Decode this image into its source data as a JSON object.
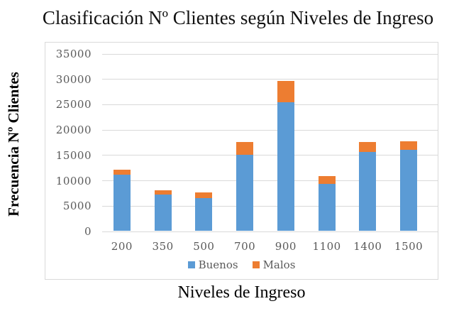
{
  "title": "Clasificación Nº Clientes según Niveles de Ingreso",
  "chart_data": {
    "type": "bar",
    "stacked": true,
    "title": "Clasificación Nº Clientes según Niveles de Ingreso",
    "xlabel": "Niveles de Ingreso",
    "ylabel": "Frecuencia Nº Clientes",
    "categories": [
      "200",
      "350",
      "500",
      "700",
      "900",
      "1100",
      "1400",
      "1500"
    ],
    "series": [
      {
        "name": "Buenos",
        "color": "#5B9BD5",
        "values": [
          11000,
          7200,
          6400,
          15000,
          25400,
          9200,
          15500,
          16000
        ]
      },
      {
        "name": "Malos",
        "color": "#ED7D31",
        "values": [
          1100,
          800,
          1100,
          2500,
          4100,
          1600,
          2000,
          1700
        ]
      }
    ],
    "ylim": [
      0,
      35000
    ],
    "ytick_step": 5000,
    "yticks": [
      "0",
      "5000",
      "10000",
      "15000",
      "20000",
      "25000",
      "30000",
      "35000"
    ],
    "grid": true,
    "legend_position": "bottom"
  },
  "style": {
    "gridline_color": "#D9D9D9",
    "axis_text_color": "#595959",
    "border_color": "#D9D9D9"
  }
}
